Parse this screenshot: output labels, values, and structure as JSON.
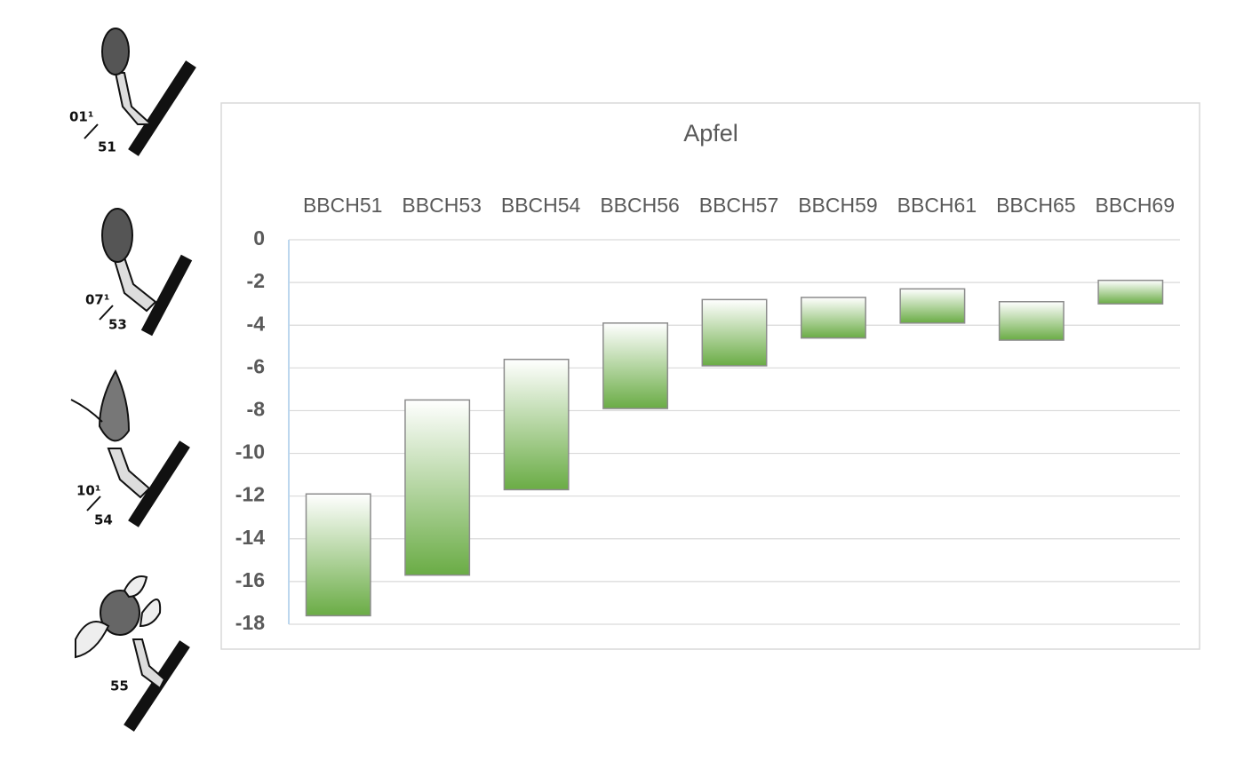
{
  "chart_data": {
    "type": "range_bar",
    "title": "Apfel",
    "categories": [
      "BBCH51",
      "BBCH53",
      "BBCH54",
      "BBCH56",
      "BBCH57",
      "BBCH59",
      "BBCH61",
      "BBCH65",
      "BBCH69"
    ],
    "low": [
      -17.6,
      -15.7,
      -11.7,
      -7.9,
      -5.9,
      -4.6,
      -3.9,
      -4.7,
      -3.0
    ],
    "high": [
      -11.9,
      -7.5,
      -5.6,
      -3.9,
      -2.8,
      -2.7,
      -2.3,
      -2.9,
      -1.9
    ],
    "color": "#6aac45",
    "ylim": [
      -18,
      0
    ],
    "yticks": [
      0,
      -2,
      -4,
      -6,
      -8,
      -10,
      -12,
      -14,
      -16,
      -18
    ],
    "grid": true
  },
  "illustrations": [
    {
      "top": "01¹",
      "bottom": "51"
    },
    {
      "top": "07¹",
      "bottom": "53"
    },
    {
      "top": "10¹",
      "bottom": "54"
    },
    {
      "bottom": "55"
    }
  ]
}
